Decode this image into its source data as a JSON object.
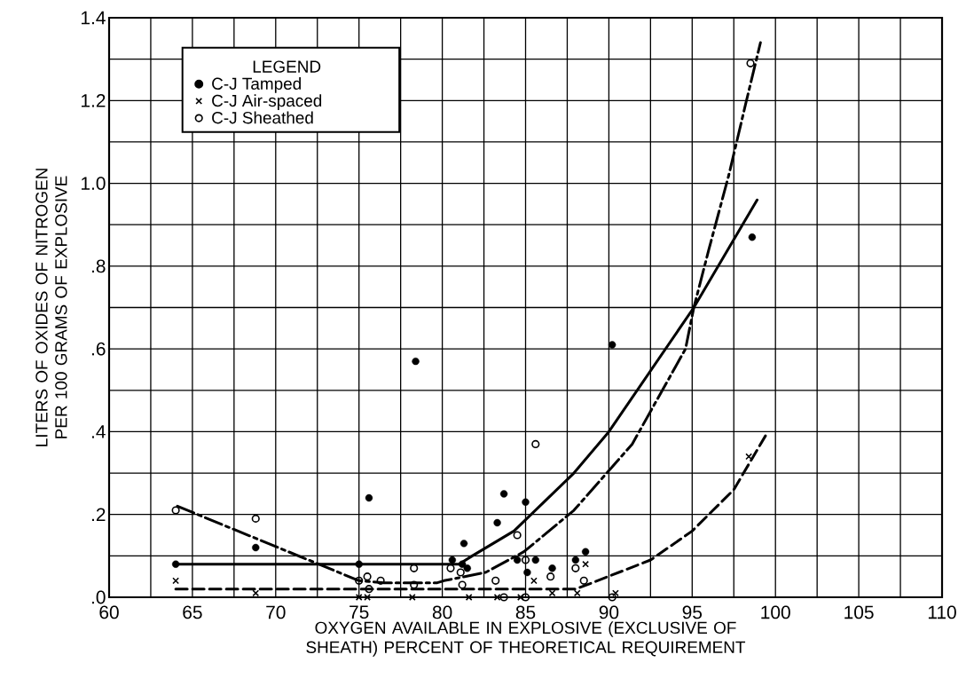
{
  "chart_data": {
    "type": "scatter",
    "xlabel": "OXYGEN AVAILABLE IN EXPLOSIVE (EXCLUSIVE OF SHEATH) PERCENT OF THEORETICAL REQUIREMENT",
    "ylabel": "LITERS OF OXIDES OF NITROGEN PER 100 GRAMS OF EXPLOSIVE",
    "legend_title": "LEGEND",
    "legend": "top left",
    "grid": true,
    "xlim": [
      60,
      110
    ],
    "ylim": [
      0,
      1.4
    ],
    "xticks": [
      60,
      {
        "value": 62.5,
        "label": null
      },
      65,
      {
        "value": 67.5,
        "label": null
      },
      70,
      {
        "value": 72.5,
        "label": null
      },
      75,
      {
        "value": 77.5,
        "label": null
      },
      80,
      {
        "value": 82.5,
        "label": null
      },
      85,
      {
        "value": 87.5,
        "label": null
      },
      90,
      {
        "value": 92.5,
        "label": null
      },
      95,
      {
        "value": 97.5,
        "label": null
      },
      100,
      {
        "value": 102.5,
        "label": null
      },
      105,
      {
        "value": 107.5,
        "label": null
      },
      110
    ],
    "yticks": [
      {
        "value": 0,
        "label": ".0"
      },
      {
        "value": 0.1,
        "label": null
      },
      {
        "value": 0.2,
        "label": ".2"
      },
      {
        "value": 0.3,
        "label": null
      },
      {
        "value": 0.4,
        "label": ".4"
      },
      {
        "value": 0.5,
        "label": null
      },
      {
        "value": 0.6,
        "label": ".6"
      },
      {
        "value": 0.7,
        "label": null
      },
      {
        "value": 0.8,
        "label": ".8"
      },
      {
        "value": 0.9,
        "label": null
      },
      {
        "value": 1.0,
        "label": "1.0"
      },
      {
        "value": 1.1,
        "label": null
      },
      {
        "value": 1.2,
        "label": "1.2"
      },
      {
        "value": 1.3,
        "label": null
      },
      {
        "value": 1.4,
        "label": "1.4"
      }
    ],
    "series": [
      {
        "name": "C-J Tamped",
        "marker": "circle",
        "color": "#000000",
        "x": [
          64.0,
          68.8,
          75.0,
          75.6,
          78.4,
          80.6,
          81.2,
          81.3,
          81.5,
          83.3,
          83.7,
          84.5,
          85.0,
          85.1,
          85.6,
          86.6,
          88.0,
          88.6,
          90.2,
          98.6
        ],
        "values": [
          0.08,
          0.12,
          0.08,
          0.24,
          0.57,
          0.09,
          0.08,
          0.13,
          0.07,
          0.18,
          0.25,
          0.09,
          0.23,
          0.06,
          0.09,
          0.07,
          0.09,
          0.11,
          0.61,
          0.87
        ]
      },
      {
        "name": "C-J Air-spaced",
        "marker": "cross",
        "color": "#000000",
        "x": [
          64.0,
          68.8,
          75.0,
          75.5,
          78.2,
          81.6,
          83.3,
          84.7,
          85.5,
          86.6,
          88.1,
          88.6,
          90.4,
          98.4
        ],
        "values": [
          0.04,
          0.01,
          0,
          0,
          0,
          0,
          0,
          0,
          0.04,
          0.01,
          0.01,
          0.08,
          0.01,
          0.34
        ]
      },
      {
        "name": "C-J Sheathed",
        "marker": "circle-open",
        "color": "#000000",
        "x": [
          64.0,
          68.8,
          75.0,
          75.5,
          75.6,
          76.3,
          78.3,
          78.3,
          80.5,
          81.1,
          81.2,
          83.2,
          83.7,
          84.5,
          85.0,
          85.0,
          85.6,
          86.5,
          88.0,
          88.5,
          90.2,
          98.5
        ],
        "values": [
          0.21,
          0.19,
          0.04,
          0.05,
          0.02,
          0.04,
          0.07,
          0.03,
          0.07,
          0.06,
          0.03,
          0.04,
          0,
          0.15,
          0.09,
          0,
          0.37,
          0.05,
          0.07,
          0.04,
          0,
          1.29
        ]
      },
      {
        "type": "line",
        "line_style": "solid",
        "marker": "none",
        "color": "#000000",
        "x": [
          64,
          81,
          81.8,
          84.3,
          87.9,
          90.0,
          95.1,
          98.9
        ],
        "values": [
          0.08,
          0.08,
          0.1,
          0.16,
          0.3,
          0.4,
          0.7,
          0.96
        ]
      },
      {
        "type": "line",
        "line_style": "dashdot",
        "marker": "none",
        "color": "#000000",
        "x": [
          64.1,
          75.0,
          76.5,
          79.7,
          80.1,
          82.6,
          84.9,
          87.9,
          91.4,
          94.6,
          95.1,
          96.0,
          97.2,
          98.2,
          99.1
        ],
        "values": [
          0.22,
          0.04,
          0.035,
          0.035,
          0.04,
          0.06,
          0.11,
          0.21,
          0.37,
          0.6,
          0.7,
          0.84,
          1.02,
          1.19,
          1.34
        ]
      },
      {
        "type": "line",
        "line_style": "dashed",
        "marker": "none",
        "color": "#000000",
        "x": [
          64,
          88,
          89.0,
          92.5,
          95.0,
          97.5,
          99.4
        ],
        "values": [
          0.02,
          0.02,
          0.035,
          0.09,
          0.16,
          0.26,
          0.39
        ]
      }
    ]
  }
}
